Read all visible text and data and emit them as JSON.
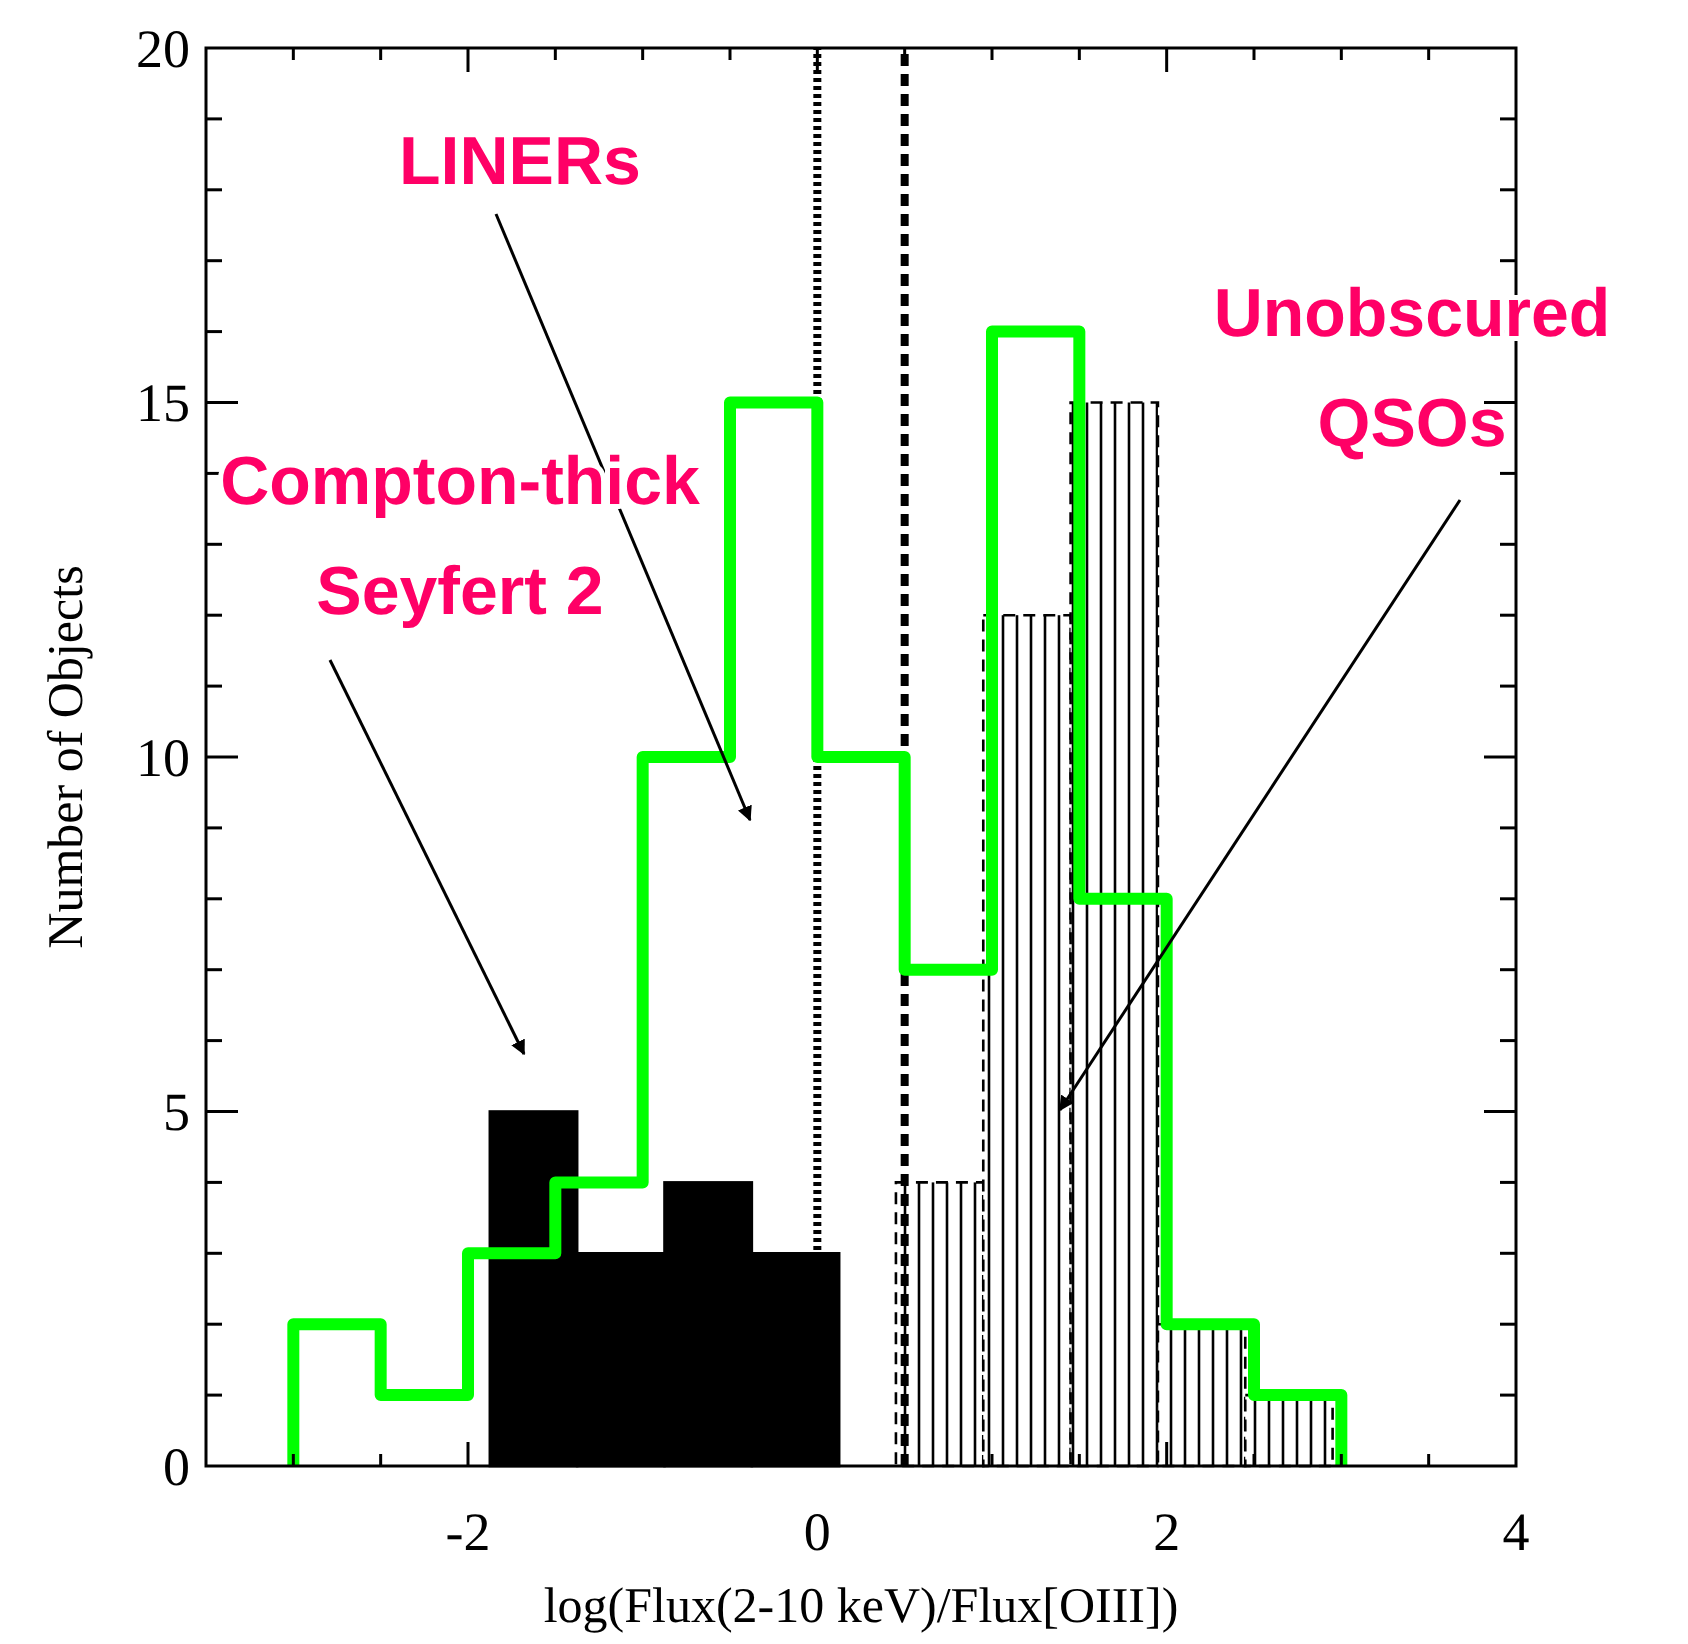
{
  "chart_data": {
    "type": "bar",
    "xlabel": "log(Flux(2-10 keV)/Flux[OIII])",
    "ylabel": "Number of Objects",
    "xlim": [
      -3.5,
      4
    ],
    "ylim": [
      0,
      20
    ],
    "xticks": [
      {
        "value": -3,
        "label": null
      },
      {
        "value": -2.5,
        "label": null
      },
      -2,
      {
        "value": -1.5,
        "label": null
      },
      {
        "value": -1,
        "label": null
      },
      {
        "value": -0.5,
        "label": null
      },
      0,
      {
        "value": 0.5,
        "label": null
      },
      {
        "value": 1,
        "label": null
      },
      {
        "value": 1.5,
        "label": null
      },
      2,
      {
        "value": 2.5,
        "label": null
      },
      {
        "value": 3,
        "label": null
      },
      {
        "value": 3.5,
        "label": null
      },
      4
    ],
    "yticks": [
      0,
      {
        "value": 1,
        "label": null
      },
      {
        "value": 2,
        "label": null
      },
      {
        "value": 3,
        "label": null
      },
      {
        "value": 4,
        "label": null
      },
      5,
      {
        "value": 6,
        "label": null
      },
      {
        "value": 7,
        "label": null
      },
      {
        "value": 8,
        "label": null
      },
      {
        "value": 9,
        "label": null
      },
      10,
      {
        "value": 11,
        "label": null
      },
      {
        "value": 12,
        "label": null
      },
      {
        "value": 13,
        "label": null
      },
      {
        "value": 14,
        "label": null
      },
      15,
      {
        "value": 16,
        "label": null
      },
      {
        "value": 17,
        "label": null
      },
      {
        "value": 18,
        "label": null
      },
      {
        "value": 19,
        "label": null
      },
      20
    ],
    "series": [
      {
        "x": [
          -1.625,
          -1.125,
          -0.625,
          -0.125
        ],
        "values": [
          5,
          3,
          4,
          3
        ],
        "color": "#000000"
      },
      {
        "x": [
          0.7,
          1.2,
          1.7,
          2.2,
          2.7
        ],
        "values": [
          4,
          12,
          15,
          2,
          1
        ],
        "color": "#000000",
        "line_style": "dashed"
      },
      {
        "type": "step",
        "x": [
          -3,
          -3,
          -2.5,
          -2,
          -1.5,
          -1,
          -0.5,
          0,
          0.5,
          1,
          1.5,
          2,
          2.5,
          3
        ],
        "values": [
          0,
          2,
          1,
          3,
          4,
          10,
          15,
          10,
          7,
          16,
          8,
          2,
          1,
          0
        ],
        "color": "#00ff00"
      }
    ],
    "ref_lines": [
      {
        "axis": "x",
        "value": 0,
        "line_style": "dotted",
        "color": "#000000"
      },
      {
        "axis": "x",
        "value": 0.5,
        "line_style": "dashed",
        "color": "#000000"
      }
    ],
    "annotations": [
      "LINERs",
      "Compton-thick\nSeyfert 2",
      "Unobscured\nQSOs"
    ]
  }
}
